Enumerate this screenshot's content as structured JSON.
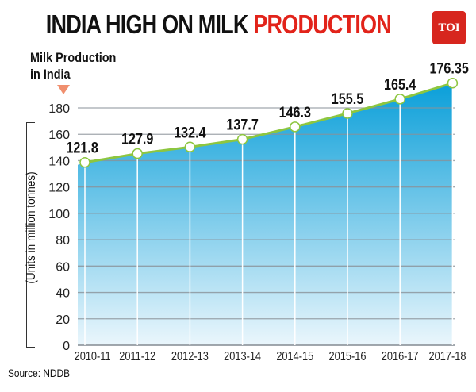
{
  "header": {
    "title_part1": "INDIA HIGH ON MILK",
    "title_part2": "PRODUCTION",
    "logo": "TOI"
  },
  "subtitle_line1": "Milk Production",
  "subtitle_line2": "in India",
  "source": "Source: NDDB",
  "colors": {
    "accent_red": "#e2231a",
    "area_top": "#0a9fd9",
    "area_bottom": "#eaf6fc",
    "line": "#8dc63f",
    "arrow": "#f08f6e"
  },
  "chart_data": {
    "type": "area",
    "title": "INDIA HIGH ON MILK PRODUCTION",
    "ylabel": "(Units in million tonnes)",
    "xlabel": "",
    "categories": [
      "2010-11",
      "2011-12",
      "2012-13",
      "2013-14",
      "2014-15",
      "2015-16",
      "2016-17",
      "2017-18"
    ],
    "values": [
      121.8,
      127.9,
      132.4,
      137.7,
      146.3,
      155.5,
      165.4,
      176.35
    ],
    "value_labels": [
      "121.8",
      "127.9",
      "132.4",
      "137.7",
      "146.3",
      "155.5",
      "165.4",
      "176.35"
    ],
    "yticks": [
      "0",
      "20",
      "40",
      "60",
      "80",
      "100",
      "120",
      "140",
      "160",
      "180"
    ],
    "ylim": [
      0,
      180
    ],
    "grid": true
  }
}
